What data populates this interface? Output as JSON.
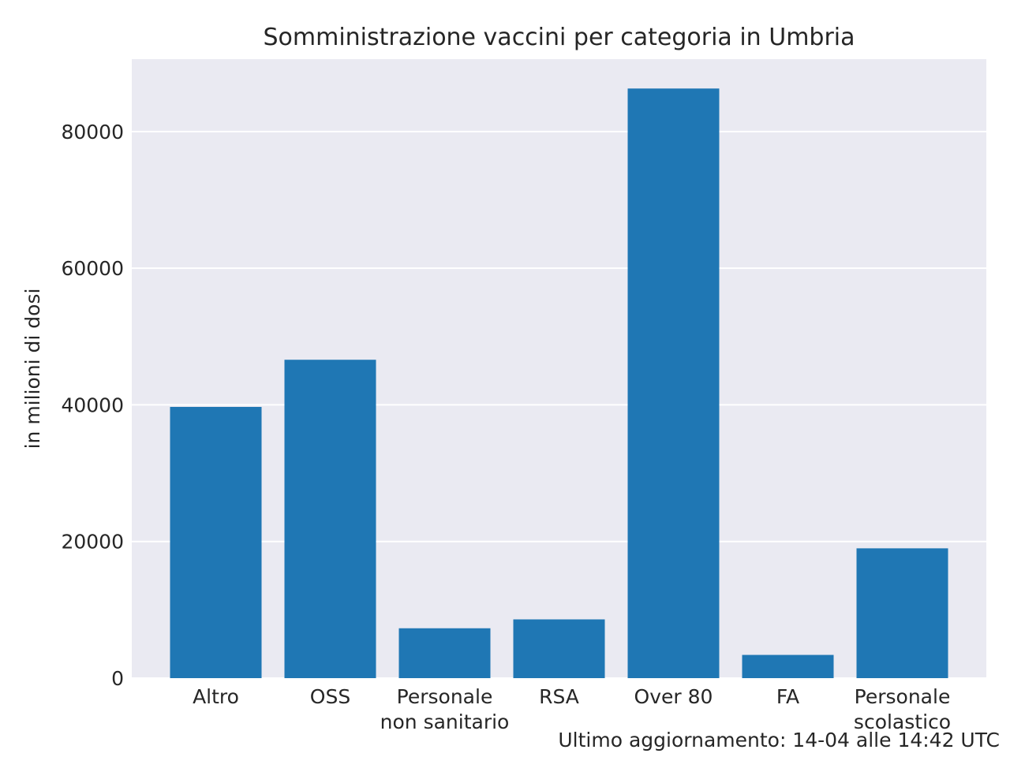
{
  "chart_data": {
    "type": "bar",
    "title": "Somministrazione vaccini per categoria in Umbria",
    "xlabel": "",
    "ylabel": "in milioni di dosi",
    "categories": [
      "Altro",
      "OSS",
      "Personale\nnon sanitario",
      "RSA",
      "Over 80",
      "FA",
      "Personale\nscolastico"
    ],
    "values": [
      39700,
      46600,
      7300,
      8600,
      86300,
      3400,
      19000
    ],
    "yticks": [
      0,
      20000,
      40000,
      60000,
      80000
    ],
    "ylim": [
      0,
      90600
    ],
    "grid": true,
    "bar_color": "#1f77b4",
    "plot_background": "#eaeaf2",
    "grid_color": "#ffffff"
  },
  "footnote": "Ultimo aggiornamento: 14-04 alle 14:42 UTC"
}
